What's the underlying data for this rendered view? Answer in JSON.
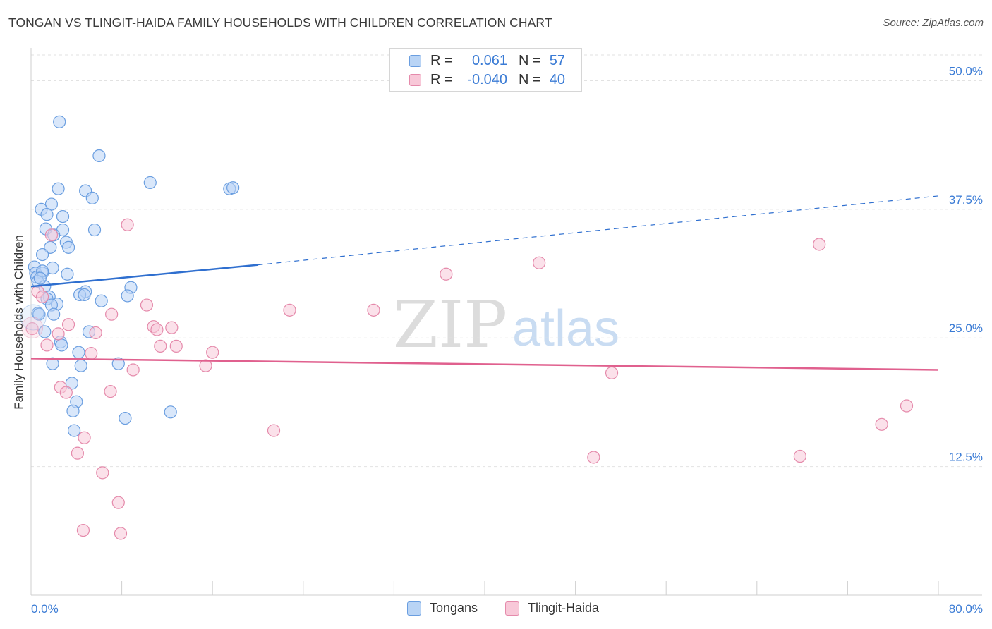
{
  "chart_data": {
    "type": "scatter",
    "title": "TONGAN VS TLINGIT-HAIDA FAMILY HOUSEHOLDS WITH CHILDREN CORRELATION CHART",
    "source": "Source: ZipAtlas.com",
    "xlabel": "",
    "ylabel": "Family Households with Children",
    "xlim": [
      0,
      80
    ],
    "ylim": [
      0,
      52.5
    ],
    "x_tick_labels": [
      "0.0%",
      "80.0%"
    ],
    "y_ticks": [
      12.5,
      25.0,
      37.5,
      50.0
    ],
    "y_tick_labels": [
      "12.5%",
      "25.0%",
      "37.5%",
      "50.0%"
    ],
    "grid": true,
    "watermark": {
      "zip": "ZIP",
      "atlas": "atlas"
    },
    "legend_stats": [
      {
        "r_label": "R = ",
        "r_value": "0.061",
        "n_label": "N = ",
        "n_value": "57"
      },
      {
        "r_label": "R = ",
        "r_value": "-0.040",
        "n_label": "N = ",
        "n_value": "40"
      }
    ],
    "series": [
      {
        "name": "Tongans",
        "color": "#6a9ee0",
        "fill": "#b9d4f5",
        "line_color": "#2f6fcf",
        "trend": {
          "x0": 0,
          "y0": 30.0,
          "x1": 20,
          "y1": 32.1,
          "dash_to_x": 80,
          "dash_to_y": 38.8
        },
        "points": [
          [
            2.5,
            46.0
          ],
          [
            6.0,
            42.7
          ],
          [
            10.5,
            40.1
          ],
          [
            17.5,
            39.5
          ],
          [
            17.8,
            39.6
          ],
          [
            2.4,
            39.5
          ],
          [
            4.8,
            39.3
          ],
          [
            5.4,
            38.6
          ],
          [
            1.8,
            38.0
          ],
          [
            0.9,
            37.5
          ],
          [
            1.4,
            37.0
          ],
          [
            2.8,
            36.8
          ],
          [
            1.3,
            35.6
          ],
          [
            2.8,
            35.5
          ],
          [
            5.6,
            35.5
          ],
          [
            2.0,
            35.0
          ],
          [
            3.1,
            34.3
          ],
          [
            1.7,
            33.8
          ],
          [
            3.3,
            33.8
          ],
          [
            1.0,
            33.1
          ],
          [
            0.3,
            31.9
          ],
          [
            1.9,
            31.8
          ],
          [
            0.4,
            31.3
          ],
          [
            1.0,
            31.3
          ],
          [
            3.2,
            31.2
          ],
          [
            0.5,
            30.9
          ],
          [
            0.6,
            30.5
          ],
          [
            1.2,
            30.0
          ],
          [
            8.8,
            29.9
          ],
          [
            4.8,
            29.5
          ],
          [
            4.3,
            29.2
          ],
          [
            4.7,
            29.2
          ],
          [
            8.5,
            29.1
          ],
          [
            1.6,
            29.0
          ],
          [
            1.4,
            28.8
          ],
          [
            6.2,
            28.6
          ],
          [
            2.3,
            28.3
          ],
          [
            1.8,
            28.2
          ],
          [
            0.6,
            27.4
          ],
          [
            0.7,
            27.3
          ],
          [
            2.0,
            27.3
          ],
          [
            1.2,
            25.6
          ],
          [
            5.1,
            25.6
          ],
          [
            2.6,
            24.6
          ],
          [
            2.7,
            24.3
          ],
          [
            4.2,
            23.6
          ],
          [
            1.9,
            22.5
          ],
          [
            7.7,
            22.5
          ],
          [
            4.4,
            22.3
          ],
          [
            3.6,
            20.6
          ],
          [
            4.0,
            18.8
          ],
          [
            3.7,
            17.9
          ],
          [
            12.3,
            17.8
          ],
          [
            8.3,
            17.2
          ],
          [
            3.8,
            16.0
          ],
          [
            1.0,
            31.5
          ],
          [
            0.8,
            30.8
          ]
        ]
      },
      {
        "name": "Tlingit-Haida",
        "color": "#e58aab",
        "fill": "#f8c8d8",
        "line_color": "#e0608e",
        "trend": {
          "x0": 0,
          "y0": 23.0,
          "x1": 80,
          "y1": 21.9
        },
        "points": [
          [
            8.5,
            36.0
          ],
          [
            1.8,
            35.0
          ],
          [
            69.5,
            34.1
          ],
          [
            44.8,
            32.3
          ],
          [
            36.6,
            31.2
          ],
          [
            0.6,
            29.5
          ],
          [
            1.0,
            29.0
          ],
          [
            10.2,
            28.2
          ],
          [
            22.8,
            27.7
          ],
          [
            30.2,
            27.7
          ],
          [
            7.1,
            27.3
          ],
          [
            3.3,
            26.3
          ],
          [
            10.8,
            26.1
          ],
          [
            12.4,
            26.0
          ],
          [
            0.1,
            25.9
          ],
          [
            11.1,
            25.8
          ],
          [
            5.7,
            25.5
          ],
          [
            2.4,
            25.4
          ],
          [
            1.4,
            24.3
          ],
          [
            11.4,
            24.2
          ],
          [
            12.8,
            24.2
          ],
          [
            16.0,
            23.6
          ],
          [
            5.3,
            23.5
          ],
          [
            15.4,
            22.3
          ],
          [
            9.0,
            21.9
          ],
          [
            51.2,
            21.6
          ],
          [
            2.6,
            20.2
          ],
          [
            3.1,
            19.7
          ],
          [
            7.0,
            19.8
          ],
          [
            77.2,
            18.4
          ],
          [
            75.0,
            16.6
          ],
          [
            21.4,
            16.0
          ],
          [
            4.7,
            15.3
          ],
          [
            4.1,
            13.8
          ],
          [
            49.6,
            13.4
          ],
          [
            67.8,
            13.5
          ],
          [
            6.3,
            11.9
          ],
          [
            7.7,
            9.0
          ],
          [
            4.6,
            6.3
          ],
          [
            7.9,
            6.0
          ]
        ]
      }
    ]
  }
}
